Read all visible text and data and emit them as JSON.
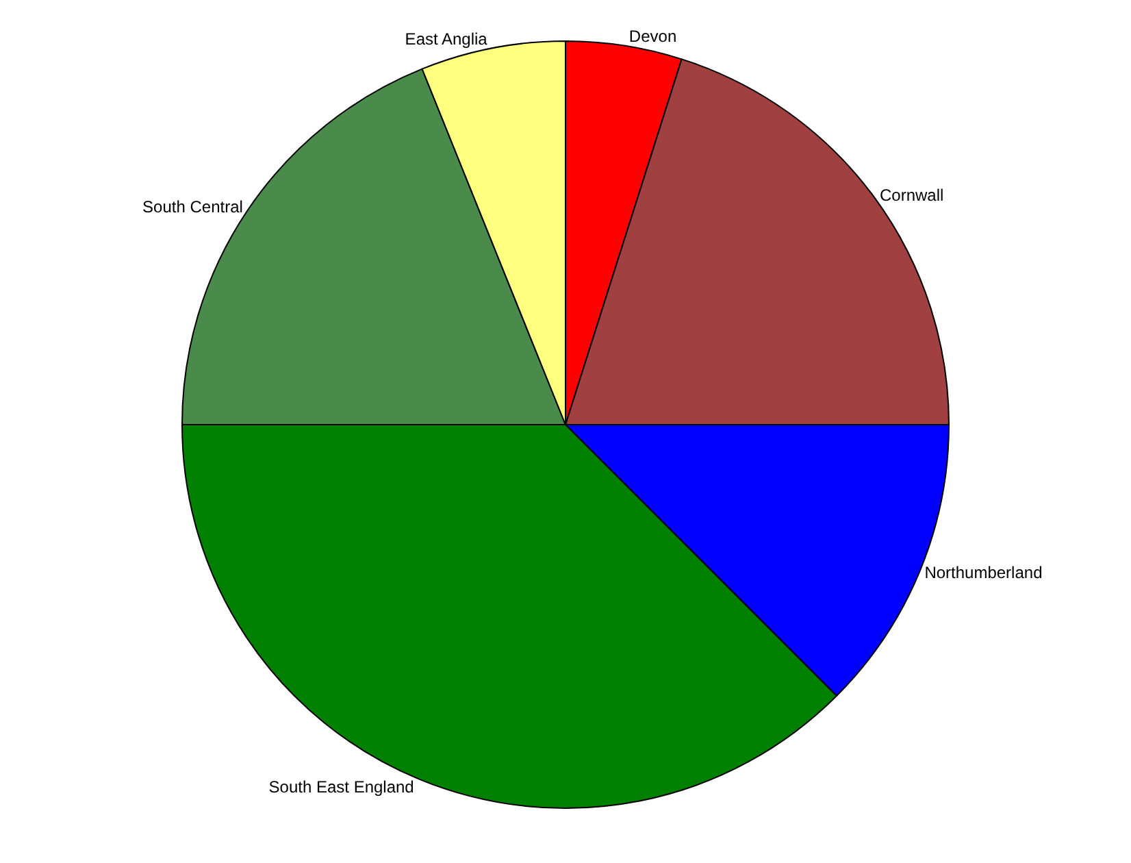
{
  "chart_data": {
    "type": "pie",
    "categories": [
      "Devon",
      "Cornwall",
      "Northumberland",
      "South East England",
      "South Central",
      "East Anglia"
    ],
    "values": [
      4.9,
      20.1,
      12.5,
      37.5,
      18.9,
      6.1
    ],
    "colors": [
      "#ff0000",
      "#a04040",
      "#0000ff",
      "#008000",
      "#4a8a4a",
      "#ffff80"
    ],
    "legend": false
  }
}
